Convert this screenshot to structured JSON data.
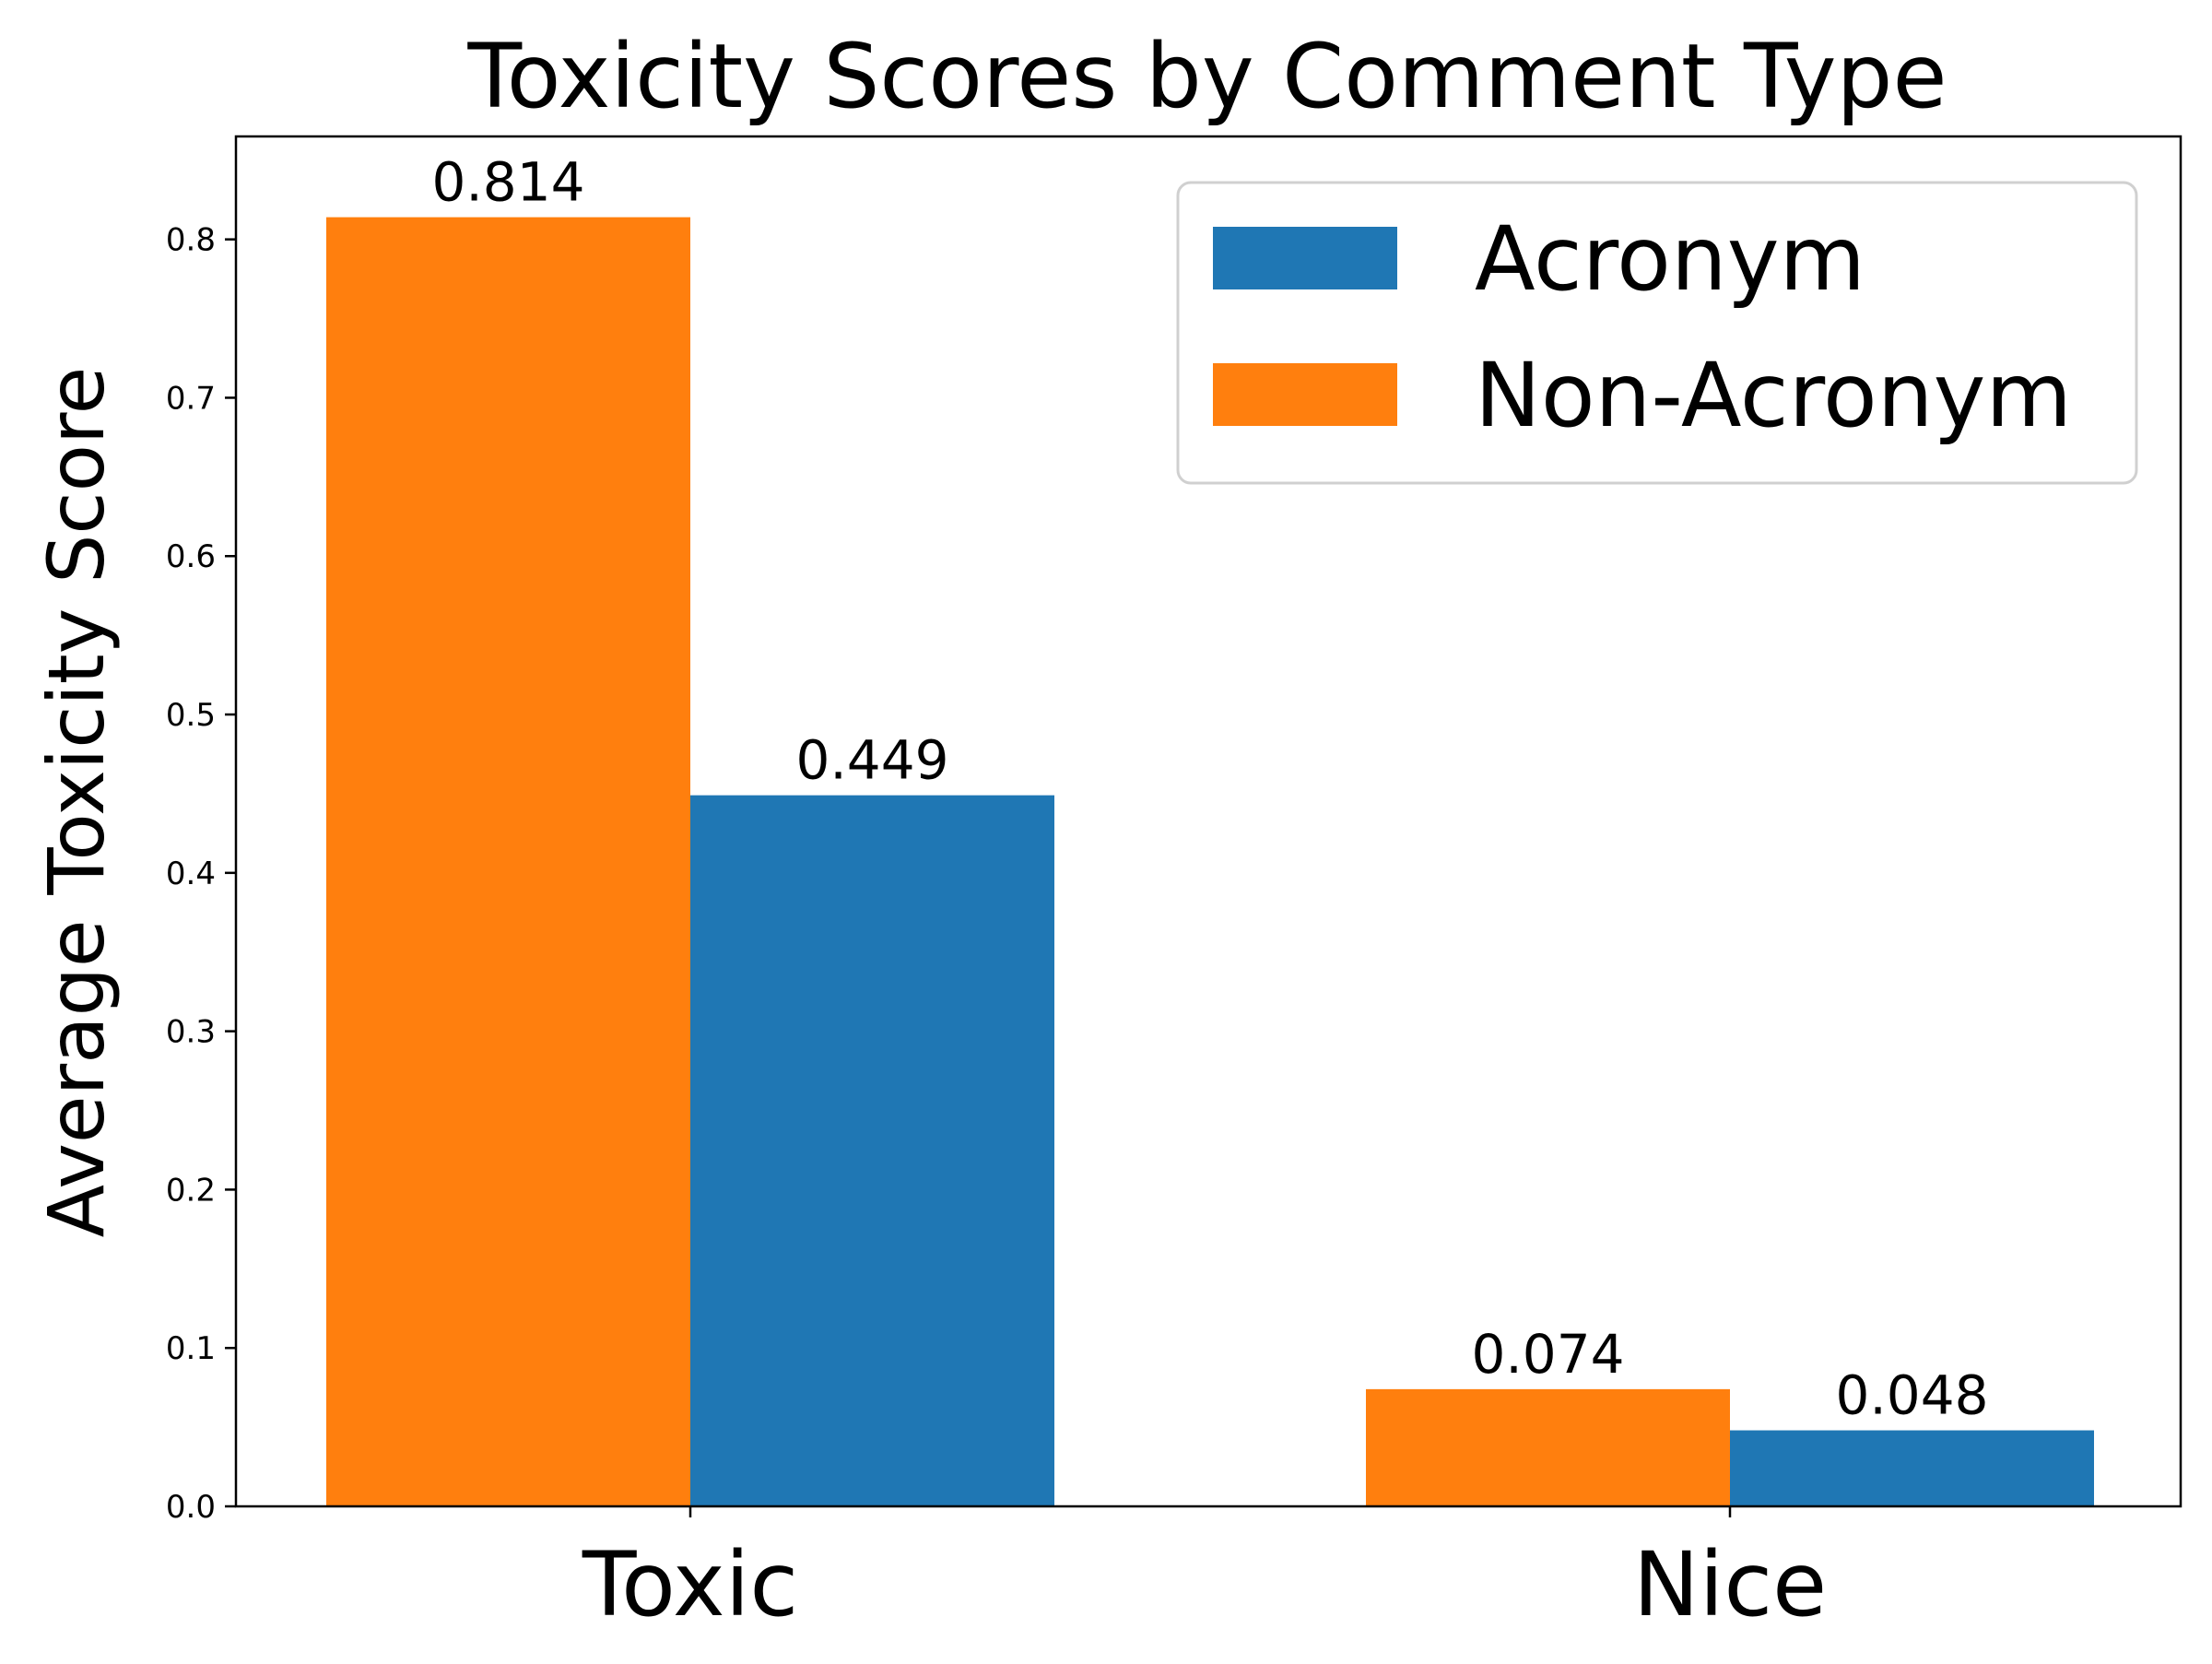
{
  "chart_data": {
    "type": "bar",
    "title": "Toxicity Scores by Comment Type",
    "xlabel": "",
    "ylabel": "Average Toxicity Score",
    "categories": [
      "Toxic",
      "Nice"
    ],
    "series": [
      {
        "name": "Non-Acronym",
        "color": "#ff7f0e",
        "values": [
          0.814,
          0.074
        ],
        "labels": [
          "0.814",
          "0.074"
        ]
      },
      {
        "name": "Acronym",
        "color": "#1f77b4",
        "values": [
          0.449,
          0.048
        ],
        "labels": [
          "0.449",
          "0.048"
        ]
      }
    ],
    "legend_order": [
      1,
      0
    ],
    "ylim": [
      0,
      0.865
    ],
    "yticks": [
      "0.0",
      "0.1",
      "0.2",
      "0.3",
      "0.4",
      "0.5",
      "0.6",
      "0.7",
      "0.8"
    ],
    "grid": false,
    "legend_position": "top-right"
  }
}
